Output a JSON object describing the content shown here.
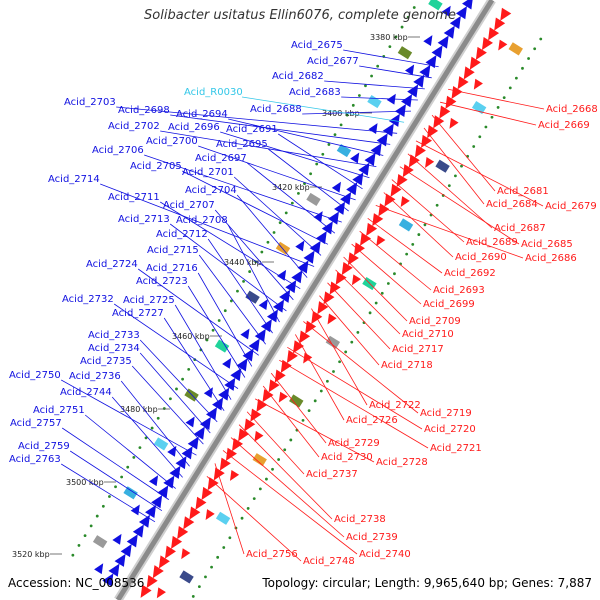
{
  "title": "Solibacter usitatus Ellin6076, complete genome",
  "footer": {
    "accession": "Accession: NC_008536",
    "summary": "Topology: circular; Length: 9,965,640 bp; Genes: 7,887"
  },
  "colors": {
    "forward": "#1010e0",
    "reverse": "#ff1a1a",
    "rna": "#33c7e8",
    "backbone": "#8a8a8a"
  },
  "kbp_ticks": [
    "3380 kbp",
    "3400 kbp",
    "3420 kbp",
    "3440 kbp",
    "3460 kbp",
    "3480 kbp",
    "3500 kbp",
    "3520 kbp"
  ],
  "forward_labels": [
    "Acid_2675",
    "Acid_2677",
    "Acid_2682",
    "Acid_2683",
    "Acid_2688",
    "Acid_R0030",
    "Acid_2703",
    "Acid_2698",
    "Acid_2694",
    "Acid_2702",
    "Acid_2696",
    "Acid_2691",
    "Acid_2700",
    "Acid_2695",
    "Acid_2706",
    "Acid_2697",
    "Acid_2705",
    "Acid_2701",
    "Acid_2714",
    "Acid_2704",
    "Acid_2711",
    "Acid_2707",
    "Acid_2713",
    "Acid_2708",
    "Acid_2712",
    "Acid_2715",
    "Acid_2724",
    "Acid_2716",
    "Acid_2723",
    "Acid_2732",
    "Acid_2725",
    "Acid_2727",
    "Acid_2733",
    "Acid_2734",
    "Acid_2735",
    "Acid_2750",
    "Acid_2736",
    "Acid_2744",
    "Acid_2751",
    "Acid_2757",
    "Acid_2759",
    "Acid_2763"
  ],
  "reverse_labels": [
    "Acid_2668",
    "Acid_2669",
    "Acid_2681",
    "Acid_2684",
    "Acid_2679",
    "Acid_2687",
    "Acid_2685",
    "Acid_2689",
    "Acid_2690",
    "Acid_2686",
    "Acid_2692",
    "Acid_2693",
    "Acid_2699",
    "Acid_2709",
    "Acid_2710",
    "Acid_2717",
    "Acid_2718",
    "Acid_2722",
    "Acid_2719",
    "Acid_2726",
    "Acid_2720",
    "Acid_2721",
    "Acid_2729",
    "Acid_2730",
    "Acid_2728",
    "Acid_2737",
    "Acid_2738",
    "Acid_2739",
    "Acid_2740",
    "Acid_2756",
    "Acid_2748"
  ]
}
